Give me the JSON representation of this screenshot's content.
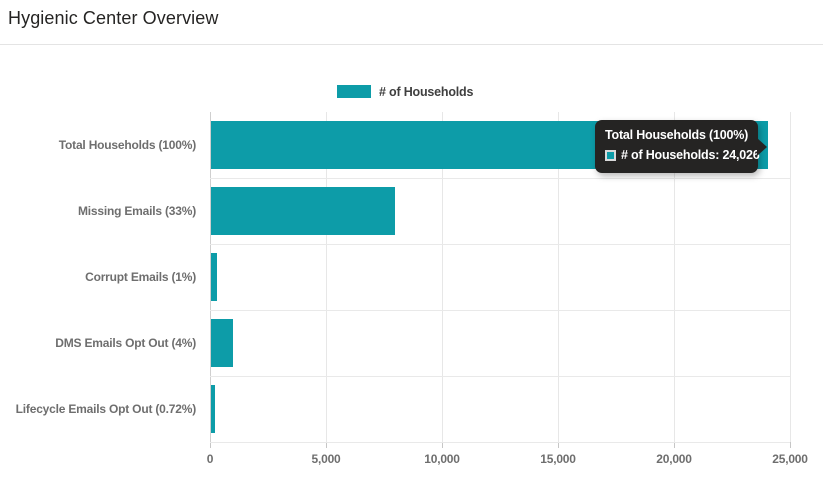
{
  "header": {
    "title": "Hygienic Center Overview"
  },
  "legend": {
    "label": "# of Households"
  },
  "tooltip": {
    "title": "Total Households (100%)",
    "value_line": "# of Households: 24,026"
  },
  "x_axis": {
    "tick_labels": [
      "0",
      "5,000",
      "10,000",
      "15,000",
      "20,000",
      "25,000"
    ]
  },
  "chart_data": {
    "type": "bar",
    "orientation": "horizontal",
    "title": "Hygienic Center Overview",
    "series_name": "# of Households",
    "categories": [
      "Total Households (100%)",
      "Missing Emails (33%)",
      "Corrupt Emails (1%)",
      "DMS Emails Opt Out (4%)",
      "Lifecycle Emails Opt Out (0.72%)"
    ],
    "values": [
      24026,
      7929,
      240,
      961,
      173
    ],
    "xlabel": "",
    "ylabel": "",
    "xlim": [
      0,
      25000
    ],
    "x_ticks": [
      0,
      5000,
      10000,
      15000,
      20000,
      25000
    ],
    "grid": true,
    "legend_position": "top",
    "bar_color": "#0D9CA8",
    "highlighted_bar": "Total Households (100%)",
    "tooltip_value": "24,026"
  },
  "colors": {
    "bar": "#0D9CA8",
    "axis_text": "#6e6e6e",
    "legend_text": "#3f3f3f",
    "tooltip_bg": "#252423",
    "tooltip_text": "#ffffff",
    "gridline": "#e7e7e7"
  }
}
